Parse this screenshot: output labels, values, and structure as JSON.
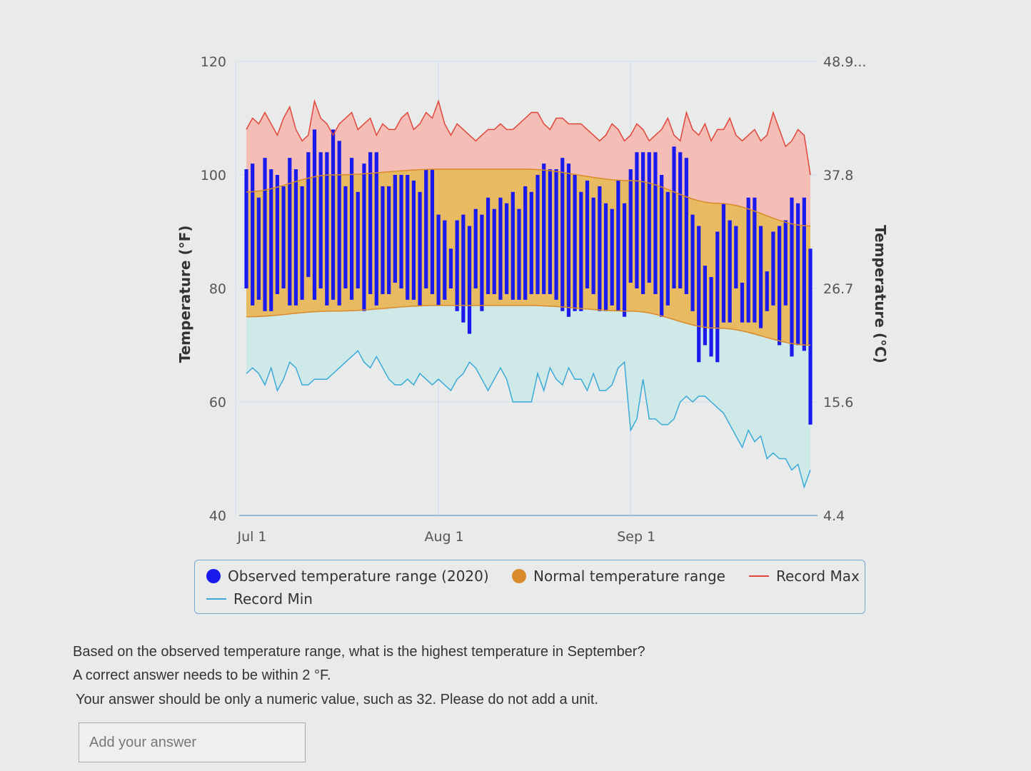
{
  "chart_data": {
    "type": "bar",
    "ylabel_left": "Temperature (°F)",
    "ylabel_right": "Temperature (°C)",
    "ylim": [
      40,
      120
    ],
    "yticks_left": [
      "40",
      "60",
      "80",
      "100",
      "120"
    ],
    "yticks_right": [
      "4.4",
      "15.6",
      "26.7",
      "37.8",
      "48.9..."
    ],
    "xticks": [
      "Jul 1",
      "Aug 1",
      "Sep 1"
    ],
    "x_start": "Jul 1",
    "grid": true,
    "legend_placement": "bottom",
    "colors": {
      "observed": "#1a1aee",
      "normal": "#e8b14a",
      "record_max": "#e0463a",
      "record_min": "#3aa9d8",
      "record_max_fill": "#f4bdb5",
      "record_min_fill": "#cfe9e8"
    },
    "series": [
      {
        "name": "Observed temperature range (2020)",
        "high": [
          101,
          102,
          96,
          103,
          101,
          100,
          98,
          103,
          101,
          98,
          104,
          108,
          104,
          104,
          108,
          106,
          98,
          103,
          97,
          102,
          104,
          104,
          98,
          98,
          100,
          100,
          100,
          99,
          97,
          101,
          101,
          93,
          92,
          87,
          92,
          93,
          91,
          94,
          93,
          96,
          94,
          96,
          95,
          97,
          94,
          98,
          97,
          100,
          102,
          101,
          101,
          103,
          102,
          100,
          97,
          99,
          96,
          98,
          95,
          94,
          99,
          95,
          101,
          104,
          104,
          104,
          104,
          100,
          97,
          105,
          104,
          103,
          93,
          91,
          84,
          82,
          90,
          95,
          92,
          91,
          81,
          96,
          96,
          91,
          83,
          90,
          91,
          92,
          96,
          95,
          96,
          87
        ],
        "low": [
          80,
          77,
          78,
          76,
          76,
          79,
          80,
          77,
          77,
          78,
          82,
          78,
          80,
          77,
          78,
          77,
          80,
          78,
          80,
          76,
          79,
          77,
          79,
          79,
          81,
          80,
          78,
          78,
          77,
          80,
          79,
          77,
          78,
          80,
          76,
          74,
          72,
          80,
          76,
          79,
          79,
          78,
          79,
          78,
          78,
          78,
          79,
          79,
          79,
          79,
          78,
          76,
          75,
          76,
          76,
          80,
          79,
          76,
          76,
          77,
          76,
          75,
          81,
          80,
          79,
          81,
          79,
          75,
          77,
          80,
          80,
          79,
          76,
          67,
          70,
          68,
          67,
          74,
          74,
          80,
          74,
          74,
          74,
          73,
          76,
          77,
          70,
          77,
          68,
          70,
          69,
          56
        ]
      },
      {
        "name": "Normal temperature range",
        "days": [
          0,
          14,
          31,
          45,
          62,
          76,
          91
        ],
        "high": [
          97,
          100,
          101,
          101,
          99,
          95,
          91
        ],
        "low": [
          75,
          76,
          77,
          77,
          76,
          73,
          70
        ]
      },
      {
        "name": "Record Max",
        "values": [
          108,
          110,
          109,
          111,
          109,
          107,
          110,
          112,
          108,
          106,
          107,
          113,
          110,
          109,
          107,
          109,
          110,
          111,
          108,
          109,
          110,
          107,
          109,
          108,
          108,
          110,
          111,
          108,
          109,
          111,
          110,
          113,
          109,
          107,
          109,
          108,
          107,
          106,
          107,
          108,
          108,
          109,
          108,
          108,
          109,
          110,
          111,
          111,
          109,
          108,
          110,
          110,
          109,
          109,
          109,
          108,
          107,
          106,
          107,
          109,
          108,
          106,
          107,
          109,
          108,
          106,
          107,
          108,
          110,
          107,
          106,
          111,
          108,
          107,
          109,
          106,
          108,
          108,
          110,
          107,
          106,
          107,
          108,
          106,
          107,
          111,
          108,
          105,
          106,
          108,
          107,
          100
        ]
      },
      {
        "name": "Record Min",
        "values": [
          65,
          66,
          65,
          63,
          66,
          62,
          64,
          67,
          66,
          63,
          63,
          64,
          64,
          64,
          65,
          66,
          67,
          68,
          69,
          67,
          66,
          68,
          66,
          64,
          63,
          63,
          64,
          63,
          65,
          64,
          63,
          64,
          63,
          62,
          64,
          65,
          67,
          66,
          64,
          62,
          64,
          66,
          64,
          60,
          60,
          60,
          60,
          65,
          62,
          66,
          64,
          63,
          66,
          64,
          64,
          62,
          65,
          62,
          62,
          63,
          66,
          67,
          55,
          57,
          64,
          57,
          57,
          56,
          56,
          57,
          60,
          61,
          60,
          61,
          61,
          60,
          59,
          58,
          56,
          54,
          52,
          55,
          53,
          54,
          50,
          51,
          50,
          50,
          48,
          49,
          45,
          48
        ]
      }
    ]
  },
  "question": {
    "line1": "Based on the observed temperature range, what is the highest temperature in September?",
    "line2": "A correct answer needs to be within 2 °F.",
    "line3": "Your answer should be only a numeric value, such as 32. Please do not add a unit.",
    "placeholder": "Add your answer"
  }
}
